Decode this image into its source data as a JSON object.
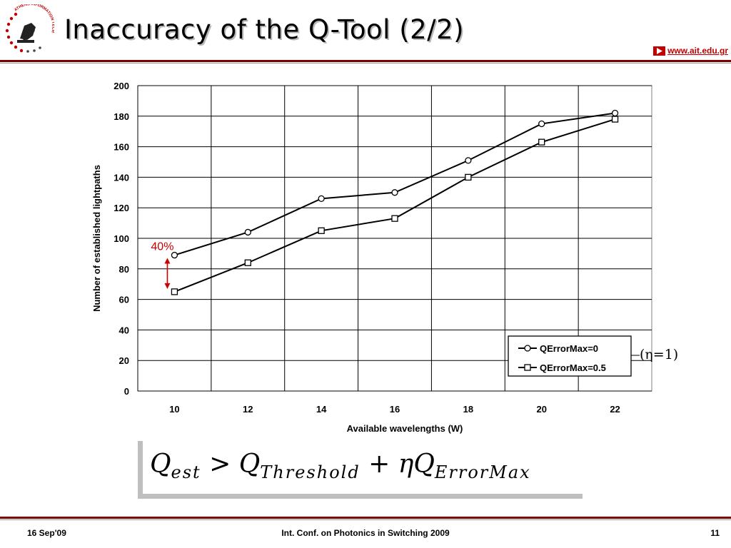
{
  "header": {
    "title": "Inaccuracy of the Q-Tool (2/2)",
    "url": "www.ait.edu.gr",
    "logo_text": "ATHENS INFORMATION TECHNOLOGY"
  },
  "colors": {
    "accent": "#7a0000",
    "annotation": "#cc0000",
    "link": "#c00000"
  },
  "chart_data": {
    "type": "line",
    "x": [
      10,
      12,
      14,
      16,
      18,
      20,
      22
    ],
    "series": [
      {
        "name": "QErrorMax=0",
        "marker": "circle",
        "values": [
          89,
          104,
          126,
          130,
          151,
          175,
          182
        ]
      },
      {
        "name": "QErrorMax=0.5",
        "marker": "square",
        "values": [
          65,
          84,
          105,
          113,
          140,
          163,
          178
        ]
      }
    ],
    "xlabel": "Available wavelengths (W)",
    "ylabel": "Number of established lightpaths",
    "ylim": [
      0,
      200
    ],
    "yticks": [
      0,
      20,
      40,
      60,
      80,
      100,
      120,
      140,
      160,
      180,
      200
    ],
    "grid": true,
    "legend": "bottom-right",
    "annotation": {
      "text": "40%",
      "x": 10,
      "from": 65,
      "to": 89
    }
  },
  "eta_note": "(η=1)",
  "formula": {
    "lhs": "Q",
    "lhs_sub": "est",
    "op": ">",
    "term1": "Q",
    "term1_sub": "Threshold",
    "plus": "+",
    "coef": "η",
    "term2": "Q",
    "term2_sub": "ErrorMax"
  },
  "footer": {
    "date": "16 Sep'09",
    "conference": "Int. Conf. on Photonics in Switching 2009",
    "page": "11"
  }
}
